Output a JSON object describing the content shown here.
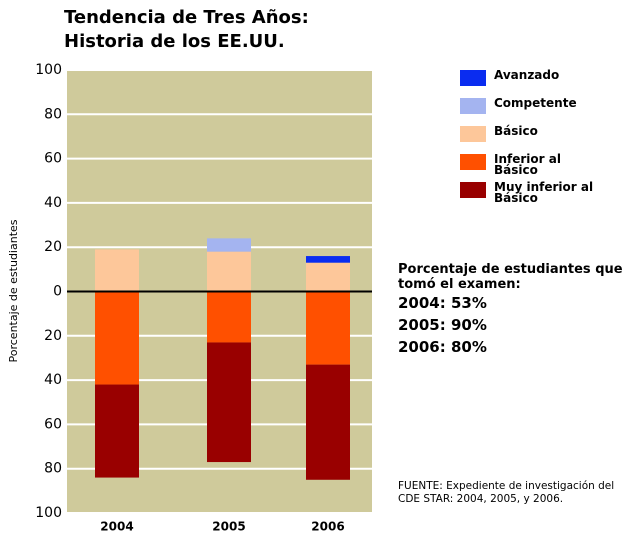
{
  "chart_data": {
    "type": "diverging_stacked_bar",
    "title": "Tendencia de Tres Años: Historia de los EE.UU.",
    "y_label": "Porcentaje de estudiantes",
    "categories": [
      "2004",
      "2005",
      "2006"
    ],
    "series": [
      {
        "name": "Avanzado",
        "color": "#0a2cf0",
        "values": [
          0,
          0,
          3
        ]
      },
      {
        "name": "Competente",
        "color": "#a4b4f0",
        "values": [
          0,
          6,
          0
        ]
      },
      {
        "name": "Básico",
        "color": "#fdc79a",
        "values": [
          19,
          18,
          13
        ]
      },
      {
        "name": "Inferior al Básico",
        "color": "#ff5000",
        "values": [
          -42,
          -23,
          -33
        ]
      },
      {
        "name": "Muy inferior al Básico",
        "color": "#990000",
        "values": [
          -42,
          -54,
          -52
        ]
      }
    ],
    "ylim": [
      -100,
      100
    ],
    "yticks": [
      {
        "value": -100,
        "label": "100"
      },
      {
        "value": -80,
        "label": "80"
      },
      {
        "value": -60,
        "label": "60"
      },
      {
        "value": -40,
        "label": "40"
      },
      {
        "value": -20,
        "label": "20"
      },
      0,
      20,
      40,
      60,
      80,
      100
    ],
    "grid": true,
    "annotation": {
      "text": "Porcentaje de estudiantes que tomó el examen:",
      "items": [
        "2004: 53%",
        "2005: 90%",
        "2006: 80%"
      ]
    },
    "source": "FUENTE: Expediente de investigación del CDE STAR: 2004, 2005, y 2006."
  }
}
